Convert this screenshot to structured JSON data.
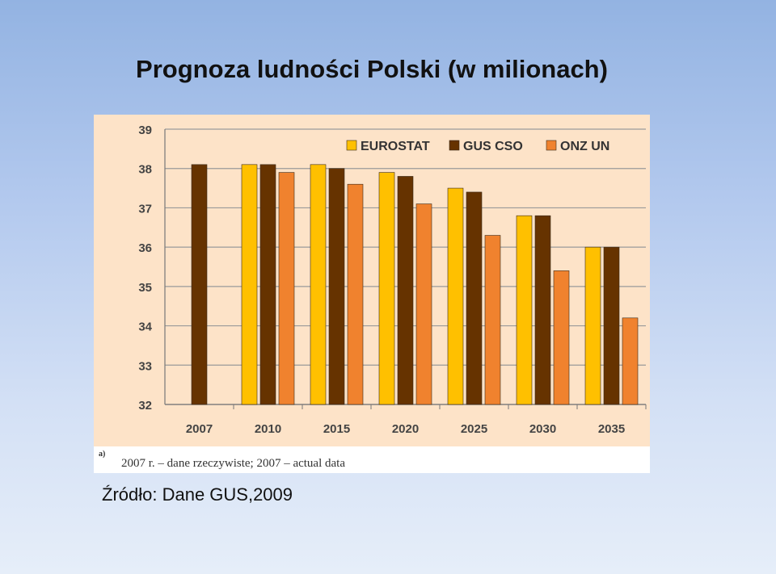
{
  "slide": {
    "title": "Prognoza ludności Polski (w milionach)",
    "source": "Źródło: Dane GUS,2009"
  },
  "footnote": {
    "mark": "a)",
    "text": "2007 r. – dane rzeczywiste; 2007 – actual data"
  },
  "colors": {
    "plot_background": "#fde3c8",
    "eurostat": "#ffc000",
    "gus": "#663300",
    "onz": "#f0822e",
    "gridline": "#9a9a9a"
  },
  "chart_data": {
    "type": "bar",
    "categories": [
      "2007",
      "2010",
      "2015",
      "2020",
      "2025",
      "2030",
      "2035"
    ],
    "series": [
      {
        "name": "EUROSTAT",
        "values": [
          null,
          38.1,
          38.1,
          37.9,
          37.5,
          36.8,
          36.0
        ]
      },
      {
        "name": "GUS  CSO",
        "values": [
          38.1,
          38.1,
          38.0,
          37.8,
          37.4,
          36.8,
          36.0
        ]
      },
      {
        "name": "ONZ  UN",
        "values": [
          null,
          37.9,
          37.6,
          37.1,
          36.3,
          35.4,
          34.2
        ]
      }
    ],
    "ylim": [
      32,
      39
    ],
    "yticks": [
      "32",
      "33",
      "34",
      "35",
      "36",
      "37",
      "38",
      "39"
    ],
    "grid": true,
    "legend_position": "top-right",
    "title": "",
    "xlabel": "",
    "ylabel": ""
  }
}
